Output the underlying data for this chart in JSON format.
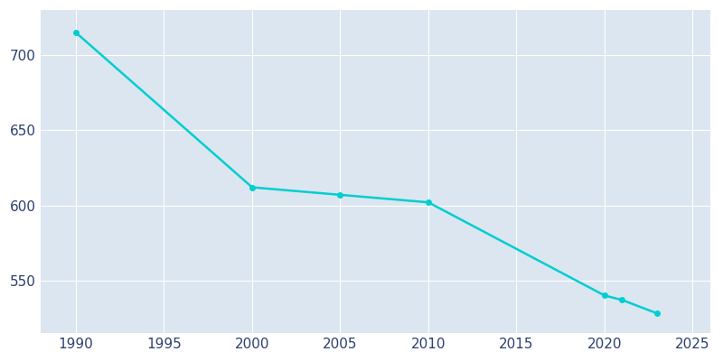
{
  "years": [
    1990,
    2000,
    2005,
    2010,
    2020,
    2021,
    2023
  ],
  "population": [
    715,
    612,
    607,
    602,
    540,
    537,
    528
  ],
  "line_color": "#00CED1",
  "marker_style": "o",
  "marker_size": 4,
  "line_width": 1.8,
  "plot_background_color": "#dce6f0",
  "figure_background_color": "#ffffff",
  "grid_color": "#ffffff",
  "xlim": [
    1988,
    2026
  ],
  "ylim": [
    515,
    730
  ],
  "xticks": [
    1990,
    1995,
    2000,
    2005,
    2010,
    2015,
    2020,
    2025
  ],
  "yticks": [
    550,
    600,
    650,
    700
  ],
  "tick_color": "#2e3f6e",
  "tick_fontsize": 11
}
